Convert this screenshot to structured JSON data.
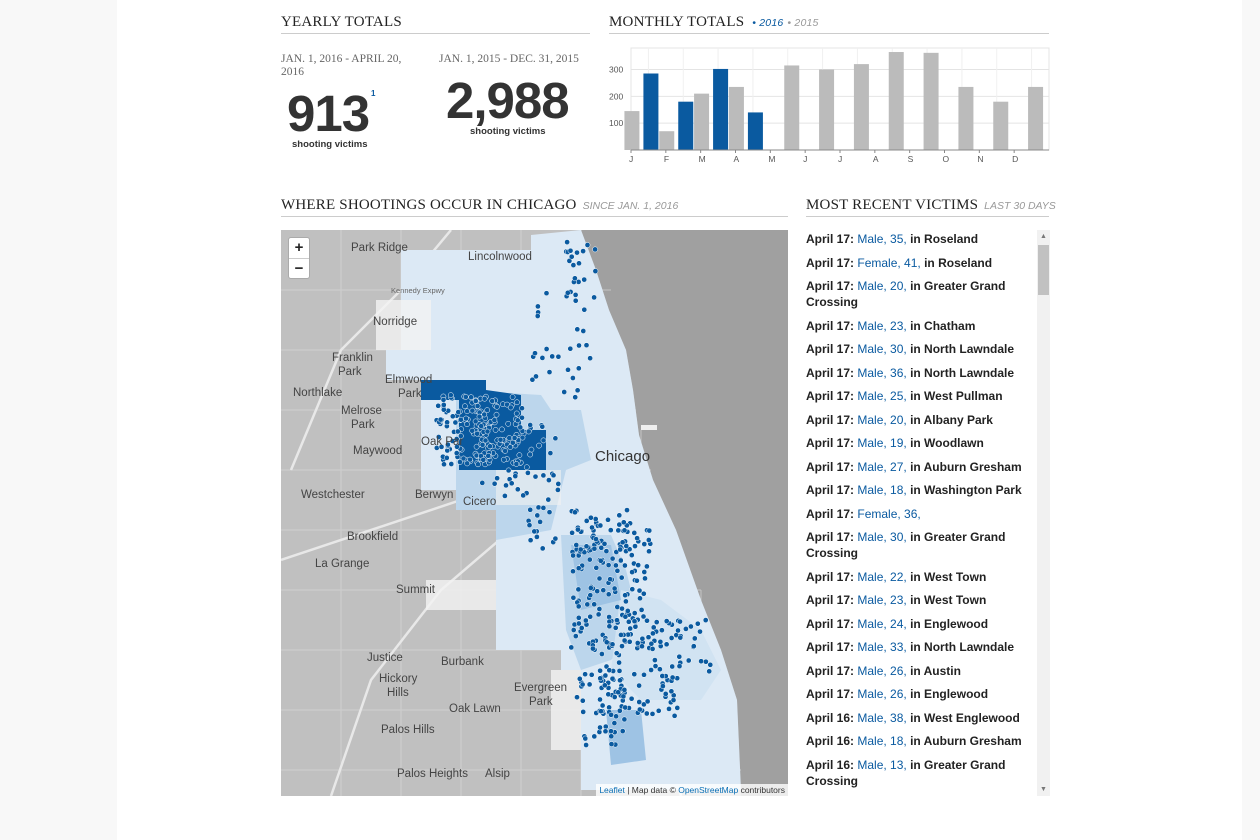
{
  "yearly": {
    "title": "YEARLY TOTALS",
    "current": {
      "range": "JAN. 1, 2016 - APRIL 20, 2016",
      "value": "913",
      "caption": "shooting victims",
      "footnote": "1"
    },
    "previous": {
      "range": "JAN. 1, 2015 - DEC. 31, 2015",
      "value": "2,988",
      "caption": "shooting victims"
    }
  },
  "monthly": {
    "title": "MONTHLY TOTALS",
    "legend_2016": "• 2016",
    "legend_2015": "• 2015"
  },
  "chart_data": {
    "type": "bar",
    "categories": [
      "J",
      "F",
      "M",
      "A",
      "M",
      "J",
      "J",
      "A",
      "S",
      "O",
      "N",
      "D"
    ],
    "series": [
      {
        "name": "2016",
        "values": [
          285,
          180,
          302,
          140,
          null,
          null,
          null,
          null,
          null,
          null,
          null,
          null
        ]
      },
      {
        "name": "2015",
        "values": [
          145,
          70,
          210,
          235,
          315,
          300,
          320,
          365,
          362,
          235,
          180,
          235
        ]
      }
    ],
    "y_ticks": [
      "100",
      "200",
      "300"
    ],
    "ylim": [
      0,
      380
    ],
    "colors": {
      "2016": "#0a5aa0",
      "2015": "#bbbbbb"
    },
    "grid": true
  },
  "map_section": {
    "title": "WHERE SHOOTINGS OCCUR IN CHICAGO",
    "subtitle": "SINCE JAN. 1, 2016",
    "zoom_in": "+",
    "zoom_out": "−",
    "attribution": {
      "leaflet": "Leaflet",
      "sep": " | Map data © ",
      "osm": "OpenStreetMap",
      "suffix": " contributors"
    },
    "labels": {
      "park_ridge": "Park Ridge",
      "lincolnwood": "Lincolnwood",
      "norridge": "Norridge",
      "franklin": "Franklin",
      "park1": "Park",
      "northlake": "Northlake",
      "elmwood": "Elmwood",
      "park2": "Park",
      "melrose": "Melrose",
      "park3": "Park",
      "oak_park": "Oak Par",
      "maywood": "Maywood",
      "chicago": "Chicago",
      "westchester": "Westchester",
      "berwyn": "Berwyn",
      "cicero": "Cicero",
      "brookfield": "Brookfield",
      "la_grange": "La Grange",
      "summit": "Summit",
      "justice": "Justice",
      "burbank": "Burbank",
      "hickory": "Hickory",
      "hills": "Hills",
      "evergreen": "Evergreen",
      "park4": "Park",
      "oak_lawn": "Oak Lawn",
      "palos_hills": "Palos Hills",
      "palos_heights": "Palos Heights",
      "alsip": "Alsip",
      "expressway": "Kennedy Expwy"
    }
  },
  "recent": {
    "title": "MOST RECENT VICTIMS",
    "subtitle": "LAST 30 DAYS",
    "items": [
      {
        "date": "April 17:",
        "victim": "Male, 35,",
        "place": "in Roseland"
      },
      {
        "date": "April 17:",
        "victim": "Female, 41,",
        "place": "in Roseland"
      },
      {
        "date": "April 17:",
        "victim": "Male, 20,",
        "place": "in Greater Grand Crossing"
      },
      {
        "date": "April 17:",
        "victim": "Male, 23,",
        "place": "in Chatham"
      },
      {
        "date": "April 17:",
        "victim": "Male, 30,",
        "place": "in North Lawndale"
      },
      {
        "date": "April 17:",
        "victim": "Male, 36,",
        "place": "in North Lawndale"
      },
      {
        "date": "April 17:",
        "victim": "Male, 25,",
        "place": "in West Pullman"
      },
      {
        "date": "April 17:",
        "victim": "Male, 20,",
        "place": "in Albany Park"
      },
      {
        "date": "April 17:",
        "victim": "Male, 19,",
        "place": "in Woodlawn"
      },
      {
        "date": "April 17:",
        "victim": "Male, 27,",
        "place": "in Auburn Gresham"
      },
      {
        "date": "April 17:",
        "victim": "Male, 18,",
        "place": "in Washington Park"
      },
      {
        "date": "April 17:",
        "victim": "Female, 36,",
        "place": ""
      },
      {
        "date": "April 17:",
        "victim": "Male, 30,",
        "place": "in Greater Grand Crossing"
      },
      {
        "date": "April 17:",
        "victim": "Male, 22,",
        "place": "in West Town"
      },
      {
        "date": "April 17:",
        "victim": "Male, 23,",
        "place": "in West Town"
      },
      {
        "date": "April 17:",
        "victim": "Male, 24,",
        "place": "in Englewood"
      },
      {
        "date": "April 17:",
        "victim": "Male, 33,",
        "place": "in North Lawndale"
      },
      {
        "date": "April 17:",
        "victim": "Male, 26,",
        "place": "in Austin"
      },
      {
        "date": "April 17:",
        "victim": "Male, 26,",
        "place": "in Englewood"
      },
      {
        "date": "April 16:",
        "victim": "Male, 38,",
        "place": "in West Englewood"
      },
      {
        "date": "April 16:",
        "victim": "Male, 18,",
        "place": "in Auburn Gresham"
      },
      {
        "date": "April 16:",
        "victim": "Male, 13,",
        "place": "in Greater Grand Crossing"
      }
    ]
  }
}
